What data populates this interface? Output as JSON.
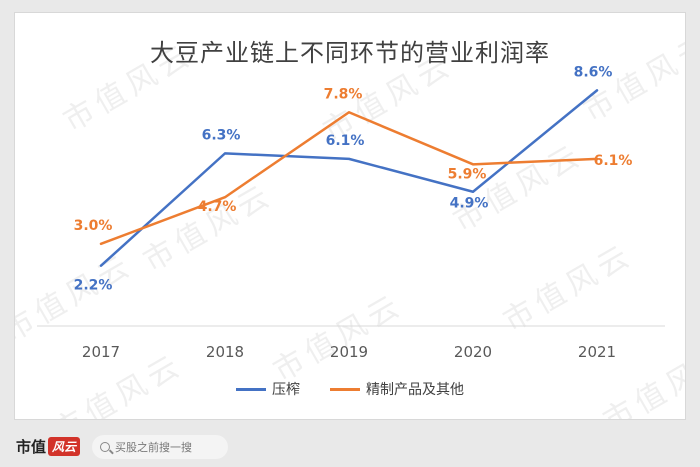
{
  "chart_data": {
    "type": "line",
    "title": "大豆产业链上不同环节的营业利润率",
    "categories": [
      "2017",
      "2018",
      "2019",
      "2020",
      "2021"
    ],
    "ylim": [
      0,
      10
    ],
    "series": [
      {
        "name": "压榨",
        "color": "#4472c4",
        "values": [
          2.2,
          6.3,
          6.1,
          4.9,
          8.6
        ],
        "labels": [
          "2.2%",
          "6.3%",
          "6.1%",
          "4.9%",
          "8.6%"
        ]
      },
      {
        "name": "精制产品及其他",
        "color": "#ed7d31",
        "values": [
          3.0,
          4.7,
          7.8,
          5.9,
          6.1
        ],
        "labels": [
          "3.0%",
          "4.7%",
          "7.8%",
          "5.9%",
          "6.1%"
        ]
      }
    ],
    "legend_position": "bottom",
    "grid": false
  },
  "watermark": "市值风云",
  "footer": {
    "brand_text": "市值",
    "brand_mark": "风云",
    "search_placeholder": "买股之前搜一搜"
  }
}
